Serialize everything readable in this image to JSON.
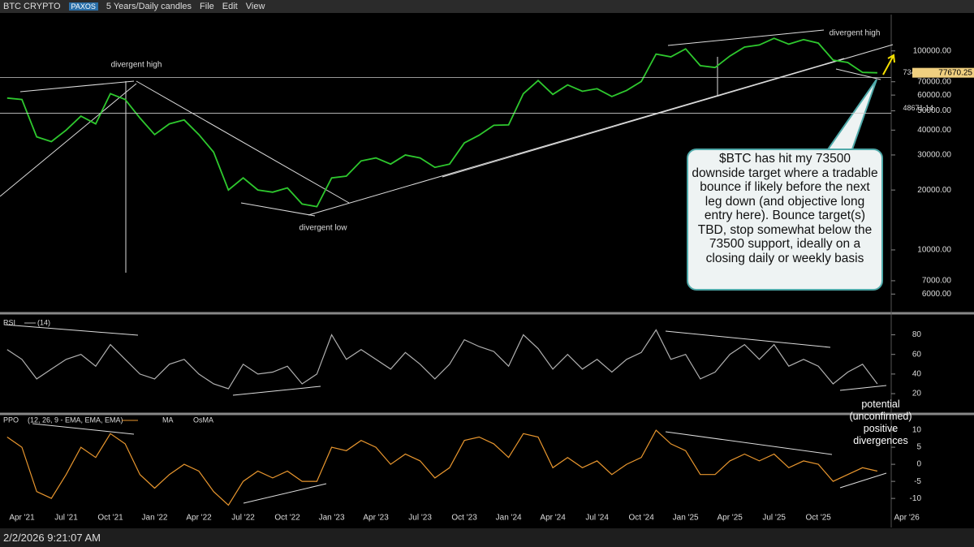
{
  "toolbar": {
    "symbol": "BTC CRYPTO",
    "exchange": "PAXOS",
    "period": "5 Years/Daily candles",
    "menu": [
      "File",
      "Edit",
      "View"
    ]
  },
  "chart_data": [
    {
      "type": "line",
      "categories": [
        null,
        "Apr '21",
        null,
        null,
        "Jul '21",
        null,
        null,
        "Oct '21",
        null,
        null,
        "Jan '22",
        null,
        null,
        "Apr '22",
        null,
        null,
        "Jul '22",
        null,
        null,
        "Oct '22",
        null,
        null,
        "Jan '23",
        null,
        null,
        "Apr '23",
        null,
        null,
        "Jul '23",
        null,
        null,
        "Oct '23",
        null,
        null,
        "Jan '24",
        null,
        null,
        "Apr '24",
        null,
        null,
        "Jul '24",
        null,
        null,
        "Oct '24",
        null,
        null,
        "Jan '25",
        null,
        null,
        "Apr '25",
        null,
        null,
        "Jul '25",
        null,
        null,
        "Oct '25",
        null,
        null,
        null,
        null,
        null,
        "Apr '26"
      ],
      "values": [
        58000,
        57000,
        37000,
        35000,
        40000,
        47000,
        43000,
        61000,
        57000,
        46000,
        38000,
        43000,
        45000,
        38000,
        31000,
        20000,
        23000,
        20000,
        19500,
        20500,
        17000,
        16500,
        23000,
        23500,
        28000,
        29000,
        27000,
        30000,
        29000,
        26000,
        27000,
        34500,
        37700,
        42300,
        42500,
        61000,
        71000,
        60500,
        67500,
        62700,
        64600,
        59000,
        63300,
        70200,
        96400,
        93400,
        102400,
        84300,
        82500,
        94200,
        104600,
        107100,
        115700,
        108200,
        114000,
        109500,
        90000,
        87500,
        78000,
        77670,
        null,
        null
      ],
      "color": "#2ec82e",
      "log_scale": true,
      "ylim": [
        4850,
        136000
      ],
      "yticks": [
        {
          "value": 6000,
          "label": "6000.00"
        },
        {
          "value": 7000,
          "label": "7000.00"
        },
        {
          "value": 10000,
          "label": "10000.00"
        },
        {
          "value": 20000,
          "label": "20000.00"
        },
        {
          "value": 30000,
          "label": "30000.00"
        },
        {
          "value": 40000,
          "label": "40000.00"
        },
        {
          "value": 50000,
          "label": "50000.00"
        },
        {
          "value": 60000,
          "label": "60000.00"
        },
        {
          "value": 70000,
          "label": "70000.00"
        },
        {
          "value": 100000,
          "label": "100000.00"
        }
      ],
      "reference_lines": [
        73497.22,
        48671.14
      ],
      "last_price": 77670.25,
      "annotations": [
        "divergent high",
        "divergent low",
        "divergent high"
      ]
    },
    {
      "type": "line",
      "title": "RSI",
      "params": "(14)",
      "values": [
        65,
        55,
        35,
        45,
        55,
        60,
        48,
        70,
        55,
        40,
        35,
        50,
        55,
        40,
        30,
        25,
        50,
        40,
        42,
        48,
        30,
        40,
        80,
        55,
        65,
        55,
        45,
        62,
        50,
        35,
        50,
        75,
        68,
        63,
        48,
        80,
        66,
        45,
        60,
        45,
        55,
        42,
        55,
        62,
        85,
        55,
        60,
        35,
        42,
        60,
        70,
        55,
        70,
        48,
        55,
        48,
        30,
        42,
        50,
        30,
        null,
        null
      ],
      "color": "#b0b0b0",
      "ylim": [
        1,
        97
      ],
      "yticks": [
        20,
        40,
        60,
        80
      ],
      "annotation": "potential (unconfirmed) positive divergences"
    },
    {
      "type": "line",
      "title": "PPO",
      "params": "(12, 26, 9 - EMA, EMA, EMA)",
      "legend_items": [
        "MA",
        "OsMA"
      ],
      "values": [
        8,
        5,
        -8,
        -10,
        -3,
        5,
        2,
        9,
        6,
        -3,
        -7,
        -3,
        0,
        -2,
        -8,
        -12,
        -5,
        -2,
        -4,
        -2,
        -5,
        -5,
        5,
        4,
        7,
        5,
        0,
        3,
        1,
        -4,
        -1,
        7,
        8,
        6,
        2,
        9,
        8,
        -1,
        2,
        -1,
        1,
        -3,
        0,
        2,
        10,
        6,
        4,
        -3,
        -3,
        1,
        3,
        1,
        3,
        -1,
        1,
        0,
        -5,
        -3,
        -1,
        -2,
        null,
        null
      ],
      "color": "#e8962e",
      "ylim": [
        -13.3,
        14.3
      ],
      "yticks": [
        10,
        5,
        0,
        -5,
        -10
      ]
    }
  ],
  "callout": "$BTC has hit my 73500 downside target where a tradable bounce if likely before the next leg down  (and objective long entry here). Bounce target(s) TBD, stop somewhat below the 73500 support, ideally on a closing daily or weekly basis",
  "status_time": "2/2/2026 9:21:07 AM"
}
